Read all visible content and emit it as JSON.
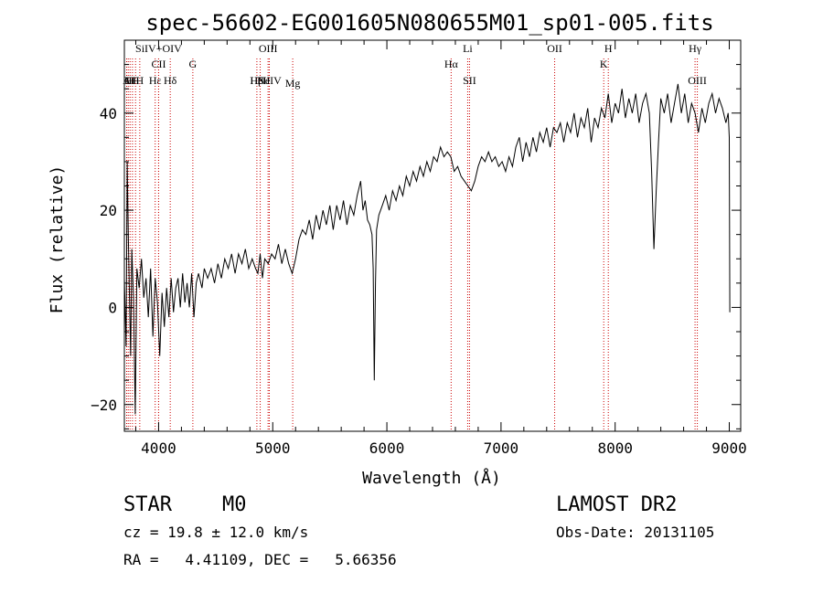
{
  "chart_data": {
    "type": "line",
    "title": "spec-56602-EG001605N080655M01_sp01-005.fits",
    "xlabel": "Wavelength (Å)",
    "ylabel": "Flux (relative)",
    "xlim": [
      3700,
      9100
    ],
    "ylim": [
      -25.5,
      55
    ],
    "x_ticks": [
      4000,
      5000,
      6000,
      7000,
      8000,
      9000
    ],
    "x_tick_labels": [
      "4000",
      "5000",
      "6000",
      "7000",
      "8000",
      "9000"
    ],
    "y_ticks": [
      -20,
      0,
      20,
      40
    ],
    "y_tick_labels": [
      "−20",
      "0",
      "20",
      "40"
    ],
    "grid": false,
    "line_color": "#000000",
    "marker_color": "#cc0000",
    "spectrum": [
      [
        3700,
        6
      ],
      [
        3715,
        -8
      ],
      [
        3725,
        30
      ],
      [
        3735,
        14
      ],
      [
        3745,
        2
      ],
      [
        3755,
        -10
      ],
      [
        3765,
        12
      ],
      [
        3780,
        2
      ],
      [
        3795,
        -22
      ],
      [
        3810,
        8
      ],
      [
        3830,
        4
      ],
      [
        3850,
        10
      ],
      [
        3870,
        2
      ],
      [
        3890,
        6
      ],
      [
        3910,
        -2
      ],
      [
        3930,
        8
      ],
      [
        3950,
        -6
      ],
      [
        3970,
        6
      ],
      [
        3990,
        1
      ],
      [
        4010,
        -10
      ],
      [
        4030,
        3
      ],
      [
        4050,
        -4
      ],
      [
        4070,
        4
      ],
      [
        4090,
        -2
      ],
      [
        4110,
        6
      ],
      [
        4130,
        -1
      ],
      [
        4150,
        4
      ],
      [
        4170,
        6
      ],
      [
        4190,
        0
      ],
      [
        4210,
        7
      ],
      [
        4230,
        1
      ],
      [
        4250,
        5
      ],
      [
        4270,
        0
      ],
      [
        4290,
        7
      ],
      [
        4310,
        -2
      ],
      [
        4330,
        5
      ],
      [
        4350,
        7
      ],
      [
        4380,
        4
      ],
      [
        4400,
        8
      ],
      [
        4430,
        6
      ],
      [
        4460,
        8
      ],
      [
        4490,
        5
      ],
      [
        4520,
        9
      ],
      [
        4550,
        6
      ],
      [
        4580,
        10
      ],
      [
        4610,
        8
      ],
      [
        4640,
        11
      ],
      [
        4670,
        7
      ],
      [
        4700,
        11
      ],
      [
        4730,
        9
      ],
      [
        4760,
        12
      ],
      [
        4790,
        8
      ],
      [
        4820,
        10
      ],
      [
        4850,
        8
      ],
      [
        4870,
        7
      ],
      [
        4890,
        11
      ],
      [
        4910,
        6
      ],
      [
        4930,
        10
      ],
      [
        4960,
        9
      ],
      [
        4990,
        11
      ],
      [
        5020,
        10
      ],
      [
        5050,
        13
      ],
      [
        5080,
        9
      ],
      [
        5110,
        12
      ],
      [
        5140,
        9
      ],
      [
        5170,
        7
      ],
      [
        5200,
        10
      ],
      [
        5230,
        14
      ],
      [
        5260,
        16
      ],
      [
        5290,
        15
      ],
      [
        5320,
        18
      ],
      [
        5350,
        14
      ],
      [
        5380,
        19
      ],
      [
        5410,
        16
      ],
      [
        5440,
        20
      ],
      [
        5470,
        17
      ],
      [
        5500,
        21
      ],
      [
        5530,
        16
      ],
      [
        5560,
        21
      ],
      [
        5590,
        18
      ],
      [
        5620,
        22
      ],
      [
        5650,
        17
      ],
      [
        5680,
        21
      ],
      [
        5710,
        19
      ],
      [
        5740,
        23
      ],
      [
        5770,
        26
      ],
      [
        5790,
        20
      ],
      [
        5810,
        22
      ],
      [
        5830,
        18
      ],
      [
        5850,
        17
      ],
      [
        5870,
        15
      ],
      [
        5880,
        8
      ],
      [
        5890,
        -15
      ],
      [
        5900,
        5
      ],
      [
        5910,
        16
      ],
      [
        5930,
        19
      ],
      [
        5960,
        21
      ],
      [
        5990,
        23
      ],
      [
        6020,
        20
      ],
      [
        6050,
        24
      ],
      [
        6080,
        22
      ],
      [
        6110,
        25
      ],
      [
        6140,
        23
      ],
      [
        6170,
        27
      ],
      [
        6200,
        25
      ],
      [
        6230,
        28
      ],
      [
        6260,
        26
      ],
      [
        6290,
        29
      ],
      [
        6320,
        27
      ],
      [
        6350,
        30
      ],
      [
        6380,
        28
      ],
      [
        6410,
        31
      ],
      [
        6440,
        30
      ],
      [
        6470,
        33
      ],
      [
        6500,
        31
      ],
      [
        6530,
        32
      ],
      [
        6560,
        31
      ],
      [
        6590,
        28
      ],
      [
        6620,
        29
      ],
      [
        6650,
        27
      ],
      [
        6680,
        26
      ],
      [
        6710,
        25
      ],
      [
        6740,
        24
      ],
      [
        6770,
        26
      ],
      [
        6800,
        29
      ],
      [
        6830,
        31
      ],
      [
        6860,
        30
      ],
      [
        6890,
        32
      ],
      [
        6920,
        30
      ],
      [
        6950,
        31
      ],
      [
        6980,
        29
      ],
      [
        7010,
        30
      ],
      [
        7040,
        28
      ],
      [
        7070,
        31
      ],
      [
        7100,
        29
      ],
      [
        7130,
        33
      ],
      [
        7160,
        35
      ],
      [
        7190,
        30
      ],
      [
        7220,
        34
      ],
      [
        7250,
        31
      ],
      [
        7280,
        35
      ],
      [
        7310,
        32
      ],
      [
        7340,
        36
      ],
      [
        7370,
        34
      ],
      [
        7400,
        37
      ],
      [
        7430,
        33
      ],
      [
        7460,
        37
      ],
      [
        7490,
        36
      ],
      [
        7520,
        38
      ],
      [
        7550,
        34
      ],
      [
        7580,
        38
      ],
      [
        7610,
        36
      ],
      [
        7640,
        40
      ],
      [
        7670,
        35
      ],
      [
        7700,
        39
      ],
      [
        7730,
        37
      ],
      [
        7760,
        41
      ],
      [
        7790,
        34
      ],
      [
        7820,
        39
      ],
      [
        7850,
        37
      ],
      [
        7880,
        41
      ],
      [
        7910,
        39
      ],
      [
        7940,
        44
      ],
      [
        7970,
        38
      ],
      [
        8000,
        42
      ],
      [
        8030,
        40
      ],
      [
        8060,
        45
      ],
      [
        8090,
        39
      ],
      [
        8120,
        43
      ],
      [
        8150,
        40
      ],
      [
        8180,
        44
      ],
      [
        8210,
        38
      ],
      [
        8240,
        42
      ],
      [
        8270,
        44
      ],
      [
        8300,
        40
      ],
      [
        8320,
        28
      ],
      [
        8340,
        12
      ],
      [
        8360,
        24
      ],
      [
        8380,
        34
      ],
      [
        8400,
        43
      ],
      [
        8430,
        40
      ],
      [
        8460,
        44
      ],
      [
        8490,
        38
      ],
      [
        8520,
        42
      ],
      [
        8550,
        46
      ],
      [
        8580,
        40
      ],
      [
        8610,
        44
      ],
      [
        8640,
        38
      ],
      [
        8670,
        42
      ],
      [
        8700,
        40
      ],
      [
        8730,
        36
      ],
      [
        8760,
        41
      ],
      [
        8790,
        38
      ],
      [
        8820,
        42
      ],
      [
        8850,
        44
      ],
      [
        8880,
        40
      ],
      [
        8910,
        43
      ],
      [
        8940,
        41
      ],
      [
        8970,
        38
      ],
      [
        8990,
        40
      ],
      [
        9000,
        35
      ],
      [
        9005,
        -1
      ]
    ],
    "line_markers": [
      {
        "label": "A",
        "x": 3720,
        "row": 1
      },
      {
        "label": "H",
        "x": 3734,
        "row": 1
      },
      {
        "label": "H",
        "x": 3750,
        "row": 1
      },
      {
        "label": "H",
        "x": 3771,
        "row": 1
      },
      {
        "label": "H",
        "x": 3798,
        "row": 1
      },
      {
        "label": "H",
        "x": 3835,
        "row": 1
      },
      {
        "label": "Hε",
        "x": 3970,
        "row": 1
      },
      {
        "label": "SiIV+OIV",
        "x": 4000,
        "row": 3
      },
      {
        "label": "CII",
        "x": 4000,
        "row": 2
      },
      {
        "label": "Hδ",
        "x": 4102,
        "row": 1
      },
      {
        "label": "G",
        "x": 4300,
        "row": 2
      },
      {
        "label": "OIII",
        "x": 4959,
        "row": 3
      },
      {
        "label": "Hβ",
        "x": 4861,
        "row": 1
      },
      {
        "label": "HeII",
        "x": 4890,
        "row": 1
      },
      {
        "label": "NeIV",
        "x": 4970,
        "row": 1
      },
      {
        "label": "Mg",
        "x": 5175,
        "row": 0
      },
      {
        "label": "Hα",
        "x": 6563,
        "row": 2
      },
      {
        "label": "Li",
        "x": 6708,
        "row": 3
      },
      {
        "label": "SII",
        "x": 6724,
        "row": 1
      },
      {
        "label": "OII",
        "x": 7470,
        "row": 3
      },
      {
        "label": "K",
        "x": 7900,
        "row": 2
      },
      {
        "label": "H",
        "x": 7940,
        "row": 3
      },
      {
        "label": "Hγ",
        "x": 8700,
        "row": 3
      },
      {
        "label": "OIII",
        "x": 8720,
        "row": 1
      }
    ]
  },
  "info": {
    "object_class": "STAR",
    "subclass": "M0",
    "survey": "LAMOST DR2",
    "cz": "cz = 19.8 ± 12.0 km/s",
    "obs_date": "Obs-Date: 20131105",
    "coords": "RA =   4.41109, DEC =   5.66356"
  }
}
